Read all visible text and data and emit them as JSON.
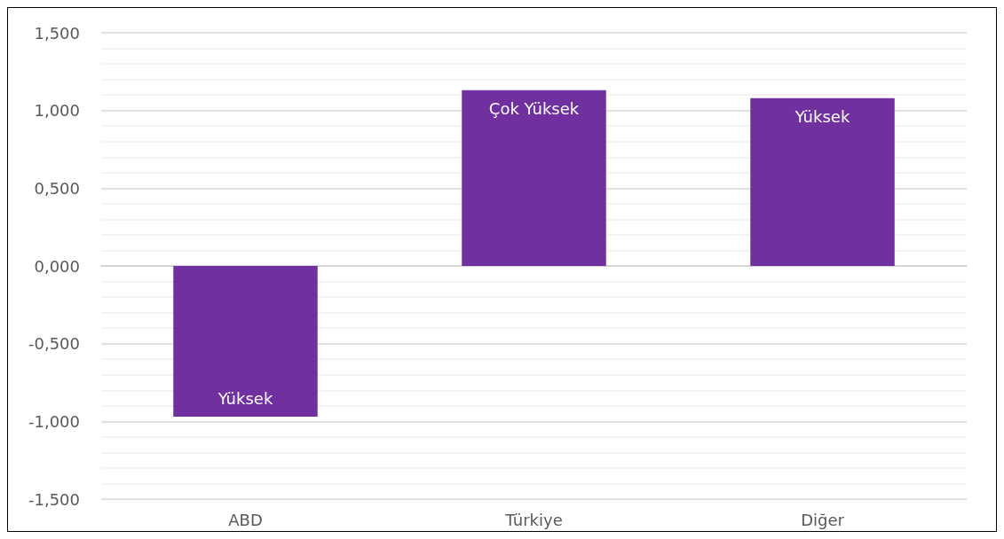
{
  "chart_data": {
    "type": "bar",
    "categories": [
      "ABD",
      "Türkiye",
      "Diğer"
    ],
    "values": [
      -0.97,
      1.13,
      1.08
    ],
    "color": "#7030a0",
    "value_labels": [
      "Yüksek",
      "Çok Yüksek",
      "Yüksek"
    ],
    "ylim": [
      -1.5,
      1.5
    ],
    "yticks": [
      {
        "value": -1.5,
        "label": "-1,500"
      },
      {
        "value": -1,
        "label": "-1,000"
      },
      {
        "value": -0.5,
        "label": "-0,500"
      },
      {
        "value": 0,
        "label": "0,000"
      },
      {
        "value": 0.5,
        "label": "0,500"
      },
      {
        "value": 1,
        "label": "1,000"
      },
      {
        "value": 1.5,
        "label": "1,500"
      }
    ],
    "grid": "y"
  }
}
